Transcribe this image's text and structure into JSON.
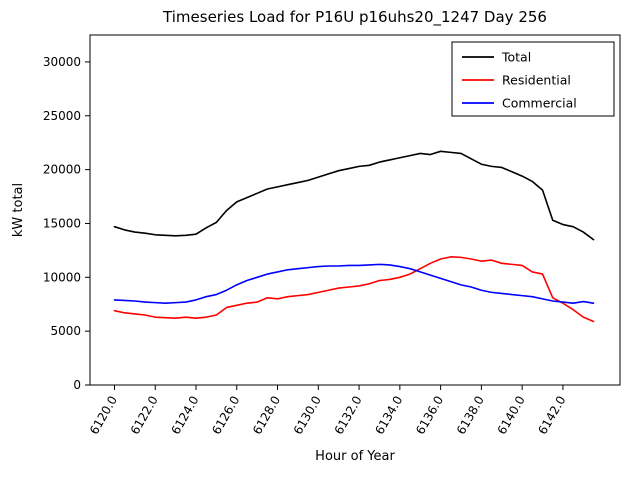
{
  "chart_data": {
    "type": "line",
    "title": "Timeseries Load for P16U p16uhs20_1247  Day 256",
    "xlabel": "Hour of Year",
    "ylabel": "kW total",
    "grid": false,
    "legend_position": "upper right",
    "xlim": [
      6118.8,
      6144.8
    ],
    "ylim": [
      0,
      32500
    ],
    "xticks": [
      6120,
      6122,
      6124,
      6126,
      6128,
      6130,
      6132,
      6134,
      6136,
      6138,
      6140,
      6142
    ],
    "xtick_labels": [
      "6120.0",
      "6122.0",
      "6124.0",
      "6126.0",
      "6128.0",
      "6130.0",
      "6132.0",
      "6134.0",
      "6136.0",
      "6138.0",
      "6140.0",
      "6142.0"
    ],
    "yticks": [
      0,
      5000,
      10000,
      15000,
      20000,
      25000,
      30000
    ],
    "ytick_labels": [
      "0",
      "5000",
      "10000",
      "15000",
      "20000",
      "25000",
      "30000"
    ],
    "x": [
      6120.0,
      6120.5,
      6121.0,
      6121.5,
      6122.0,
      6122.5,
      6123.0,
      6123.5,
      6124.0,
      6124.5,
      6125.0,
      6125.5,
      6126.0,
      6126.5,
      6127.0,
      6127.5,
      6128.0,
      6128.5,
      6129.0,
      6129.5,
      6130.0,
      6130.5,
      6131.0,
      6131.5,
      6132.0,
      6132.5,
      6133.0,
      6133.5,
      6134.0,
      6134.5,
      6135.0,
      6135.5,
      6136.0,
      6136.5,
      6137.0,
      6137.5,
      6138.0,
      6138.5,
      6139.0,
      6139.5,
      6140.0,
      6140.5,
      6141.0,
      6141.5,
      6142.0,
      6142.5,
      6143.0,
      6143.5
    ],
    "series": [
      {
        "name": "Total",
        "color": "#000000",
        "values": [
          14700,
          14400,
          14200,
          14100,
          13950,
          13900,
          13850,
          13900,
          14000,
          14600,
          15100,
          16200,
          17000,
          17400,
          17800,
          18200,
          18400,
          18600,
          18800,
          19000,
          19300,
          19600,
          19900,
          20100,
          20300,
          20400,
          20700,
          20900,
          21100,
          21300,
          21500,
          21400,
          21700,
          21600,
          21500,
          21000,
          20500,
          20300,
          20200,
          19800,
          19400,
          18900,
          18100,
          15300,
          14900,
          14700,
          14200,
          13500
        ]
      },
      {
        "name": "Residential",
        "color": "#ff0000",
        "values": [
          6900,
          6700,
          6600,
          6500,
          6300,
          6250,
          6200,
          6300,
          6200,
          6300,
          6500,
          7200,
          7400,
          7600,
          7700,
          8100,
          8000,
          8200,
          8300,
          8400,
          8600,
          8800,
          9000,
          9100,
          9200,
          9400,
          9700,
          9800,
          10000,
          10300,
          10800,
          11300,
          11700,
          11900,
          11850,
          11700,
          11500,
          11600,
          11300,
          11200,
          11100,
          10500,
          10300,
          8100,
          7600,
          7000,
          6300,
          5900
        ]
      },
      {
        "name": "Commercial",
        "color": "#0000ff",
        "values": [
          7900,
          7850,
          7800,
          7700,
          7650,
          7600,
          7650,
          7700,
          7900,
          8200,
          8400,
          8800,
          9300,
          9700,
          10000,
          10300,
          10500,
          10700,
          10800,
          10900,
          11000,
          11050,
          11050,
          11100,
          11100,
          11150,
          11200,
          11150,
          11000,
          10800,
          10500,
          10200,
          9900,
          9600,
          9300,
          9100,
          8800,
          8600,
          8500,
          8400,
          8300,
          8200,
          8000,
          7800,
          7700,
          7600,
          7750,
          7600
        ]
      }
    ]
  }
}
